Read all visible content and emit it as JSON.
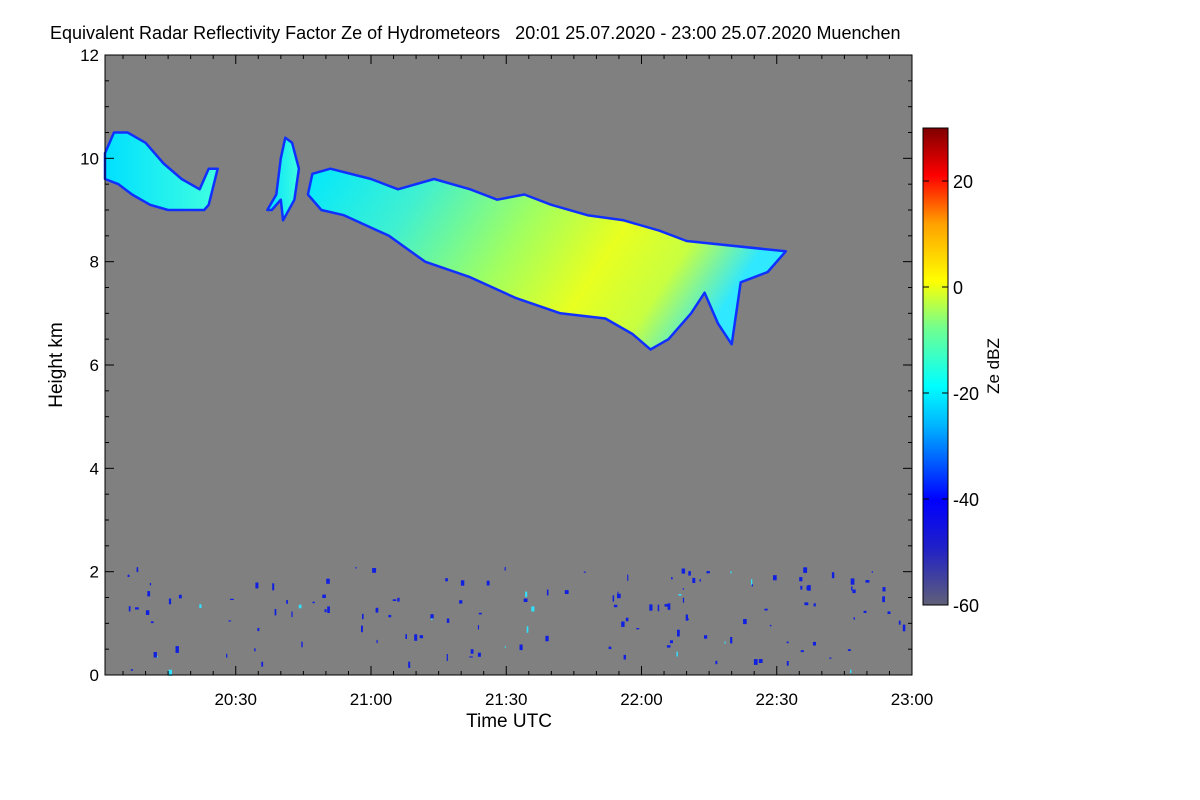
{
  "chart_data": {
    "type": "heatmap",
    "title": "Equivalent Radar Reflectivity Factor Ze of Hydrometeors   20:01 25.07.2020 - 23:00 25.07.2020 Muenchen",
    "xlabel": "Time UTC",
    "ylabel": "Height km",
    "x_range_minutes_utc": [
      1201,
      1380
    ],
    "x_ticks": [
      {
        "label": "20:30",
        "minutes_utc": 1230
      },
      {
        "label": "21:00",
        "minutes_utc": 1260
      },
      {
        "label": "21:30",
        "minutes_utc": 1290
      },
      {
        "label": "22:00",
        "minutes_utc": 1320
      },
      {
        "label": "22:30",
        "minutes_utc": 1350
      },
      {
        "label": "23:00",
        "minutes_utc": 1380
      }
    ],
    "y_range_km": [
      0,
      12
    ],
    "y_ticks": [
      0,
      2,
      4,
      6,
      8,
      10,
      12
    ],
    "colorbar": {
      "label": "Ze dBZ",
      "range": [
        -60,
        30
      ],
      "ticks": [
        20,
        0,
        -20,
        -40,
        -60
      ],
      "colormap": "jet",
      "colors": {
        "low": "#5a5a78",
        "blue": "#0000ff",
        "cyan": "#00ffff",
        "yellow": "#ffff00",
        "red": "#ff0000",
        "high": "#800000"
      }
    },
    "background_color": "#808080",
    "cloud_regions": [
      {
        "name": "upper layer west",
        "t_start": 1201,
        "t_end": 1226,
        "top_km": 10.5,
        "base_km": 9.0,
        "ze_range_dbz": [
          -40,
          -22
        ]
      },
      {
        "name": "fragment",
        "t_start": 1237,
        "t_end": 1244,
        "top_km": 10.4,
        "base_km": 8.8,
        "ze_range_dbz": [
          -40,
          -25
        ]
      },
      {
        "name": "main cirrus",
        "t_start": 1246,
        "t_end": 1352,
        "top_km": 9.8,
        "base_km": 6.3,
        "ze_range_dbz": [
          -40,
          0
        ],
        "max_ze_dbz": 0
      }
    ],
    "near_surface_clutter_km": [
      0,
      2
    ],
    "clutter_ze_dbz": -40
  }
}
